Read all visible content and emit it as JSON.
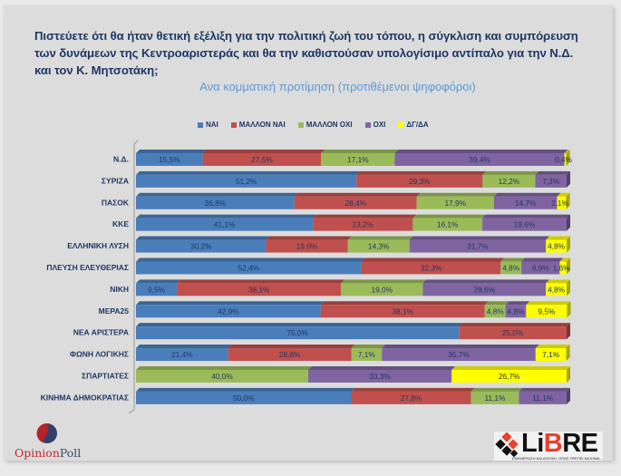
{
  "header": {
    "title": "Πιστεύετε ότι θα ήταν θετική εξέλιξη για την πολιτική ζωή του τόπου, η σύγκλιση και συμπόρευση των δυνάμεων της Κεντροαριστεράς και θα την καθιστούσαν υπολογίσιμο αντίπαλο για την Ν.Δ. και τον Κ. Μητσοτάκη;",
    "subtitle": "Ανα κομματική προτίμηση (προτιθέμενοι ψηφοφόροι)"
  },
  "logos": {
    "left_part1": "Opinion",
    "left_part2": "Poll",
    "right_brand_a": "Li",
    "right_brand_b": "B",
    "right_brand_c": "RE",
    "right_tagline": "ΕΝΗΜΕΡΩΣΗ ΚΑΙ ΑΠΟΨΗ, ΟΠΩΣ ΠΡΕΠΕΙ ΝΑ ΕΙΝΑΙ..."
  },
  "chart_data": {
    "type": "bar",
    "orientation": "horizontal",
    "stacked": "100%",
    "title": "Πιστεύετε ότι θα ήταν θετική εξέλιξη για την πολιτική ζωή του τόπου, η σύγκλιση και συμπόρευση των δυνάμεων της Κεντροαριστεράς και θα την καθιστούσαν υπολογίσιμο αντίπαλο για την Ν.Δ. και τον Κ. Μητσοτάκη;",
    "subtitle": "Ανα κομματική προτίμηση (προτιθέμενοι ψηφοφόροι)",
    "xlabel": "",
    "ylabel": "",
    "legend_position": "top",
    "grid": false,
    "categories": [
      "Ν.Δ.",
      "ΣΥΡΙΖΑ",
      "ΠΑΣΟΚ",
      "ΚΚΕ",
      "ΕΛΛΗΝΙΚΗ ΛΥΣΗ",
      "ΠΛΕΥΣΗ ΕΛΕΥΘΕΡΙΑΣ",
      "ΝΙΚΗ",
      "ΜΕΡΑ25",
      "ΝΕΑ ΑΡΙΣΤΕΡΑ",
      "ΦΩΝΗ ΛΟΓΙΚΗΣ",
      "ΣΠΑΡΤΙΑΤΕΣ",
      "ΚΙΝΗΜΑ ΔΗΜΟΚΡΑΤΙΑΣ"
    ],
    "series": [
      {
        "name": "ΝΑΙ",
        "color": "#4a7ebb",
        "values": [
          15.5,
          51.2,
          36.8,
          41.1,
          30.2,
          52.4,
          9.5,
          42.9,
          75.0,
          21.4,
          0,
          50.0
        ]
      },
      {
        "name": "ΜΑΛΛΟΝ ΝΑΙ",
        "color": "#c0504d",
        "values": [
          27.5,
          29.3,
          28.4,
          23.2,
          19.0,
          32.3,
          38.1,
          38.1,
          25.0,
          28.6,
          0,
          27.8
        ]
      },
      {
        "name": "ΜΑΛΛΟΝ ΟΧΙ",
        "color": "#9bbb59",
        "values": [
          17.1,
          12.2,
          17.9,
          16.1,
          14.3,
          4.8,
          19.0,
          4.8,
          0,
          7.1,
          40.0,
          11.1
        ]
      },
      {
        "name": "ΟΧΙ",
        "color": "#8064a2",
        "values": [
          39.4,
          7.3,
          14.7,
          19.6,
          31.7,
          8.9,
          28.6,
          4.8,
          0,
          35.7,
          33.3,
          11.1
        ]
      },
      {
        "name": "ΔΓ/ΔΑ",
        "color": "#ffff00",
        "values": [
          0.4,
          0,
          2.1,
          0,
          4.8,
          1.6,
          4.8,
          9.5,
          0,
          7.1,
          26.7,
          0
        ]
      }
    ],
    "value_format": "decimal-comma-percent",
    "xlim": [
      0,
      100
    ]
  }
}
